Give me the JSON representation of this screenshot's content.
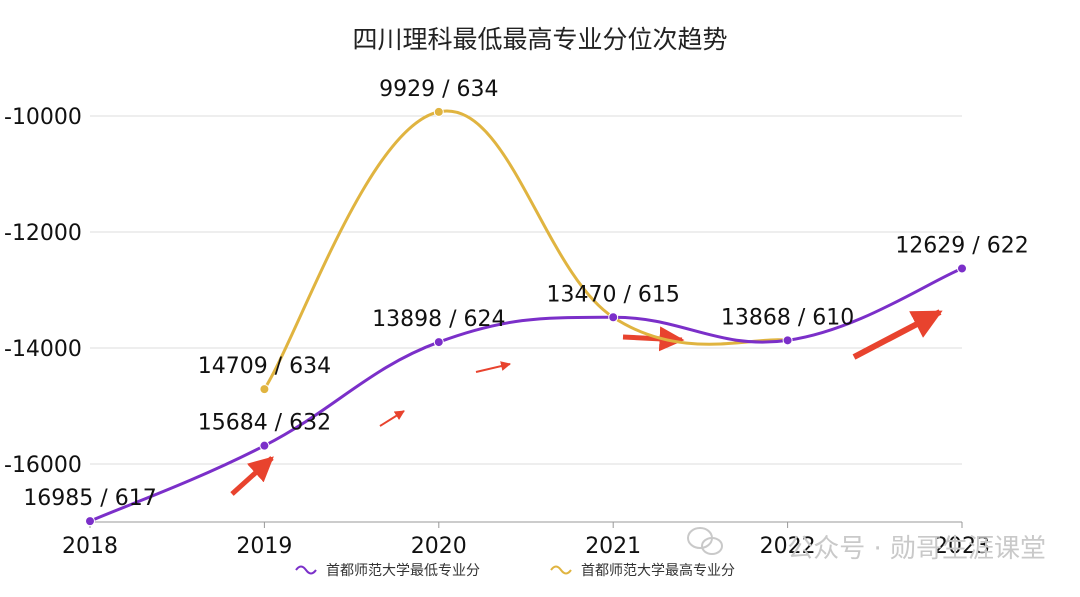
{
  "chart_data": {
    "type": "line",
    "title": "四川理科最低最高专业分位次趋势",
    "categories": [
      "2018",
      "2019",
      "2020",
      "2021",
      "2022",
      "2023"
    ],
    "ylim": [
      -17000,
      -10000
    ],
    "yticks": [
      -10000,
      -12000,
      -14000,
      -16000
    ],
    "ytick_labels": [
      "-10000",
      "-12000",
      "-14000",
      "-16000"
    ],
    "grid": true,
    "series": [
      {
        "name": "首都师范大学最低专业分",
        "color": "#7b2fc9",
        "values": [
          -16985,
          -15684,
          -13898,
          -13470,
          -13868,
          -12629
        ],
        "labels": [
          "16985 / 617",
          "15684 / 632",
          "13898 / 624",
          "13470 / 615",
          "13868 / 610",
          "12629 / 622"
        ]
      },
      {
        "name": "首都师范大学最高专业分",
        "color": "#e0b440",
        "values": [
          null,
          -14709,
          -9929,
          -13470,
          -13868,
          null
        ],
        "labels": [
          null,
          "14709 / 634",
          "9929 / 634",
          null,
          null,
          null
        ]
      }
    ],
    "legend_position": "bottom-center"
  },
  "annotations": {
    "arrow_color": "#e8432e"
  },
  "watermark": "公众号 · 勋哥生涯课堂"
}
